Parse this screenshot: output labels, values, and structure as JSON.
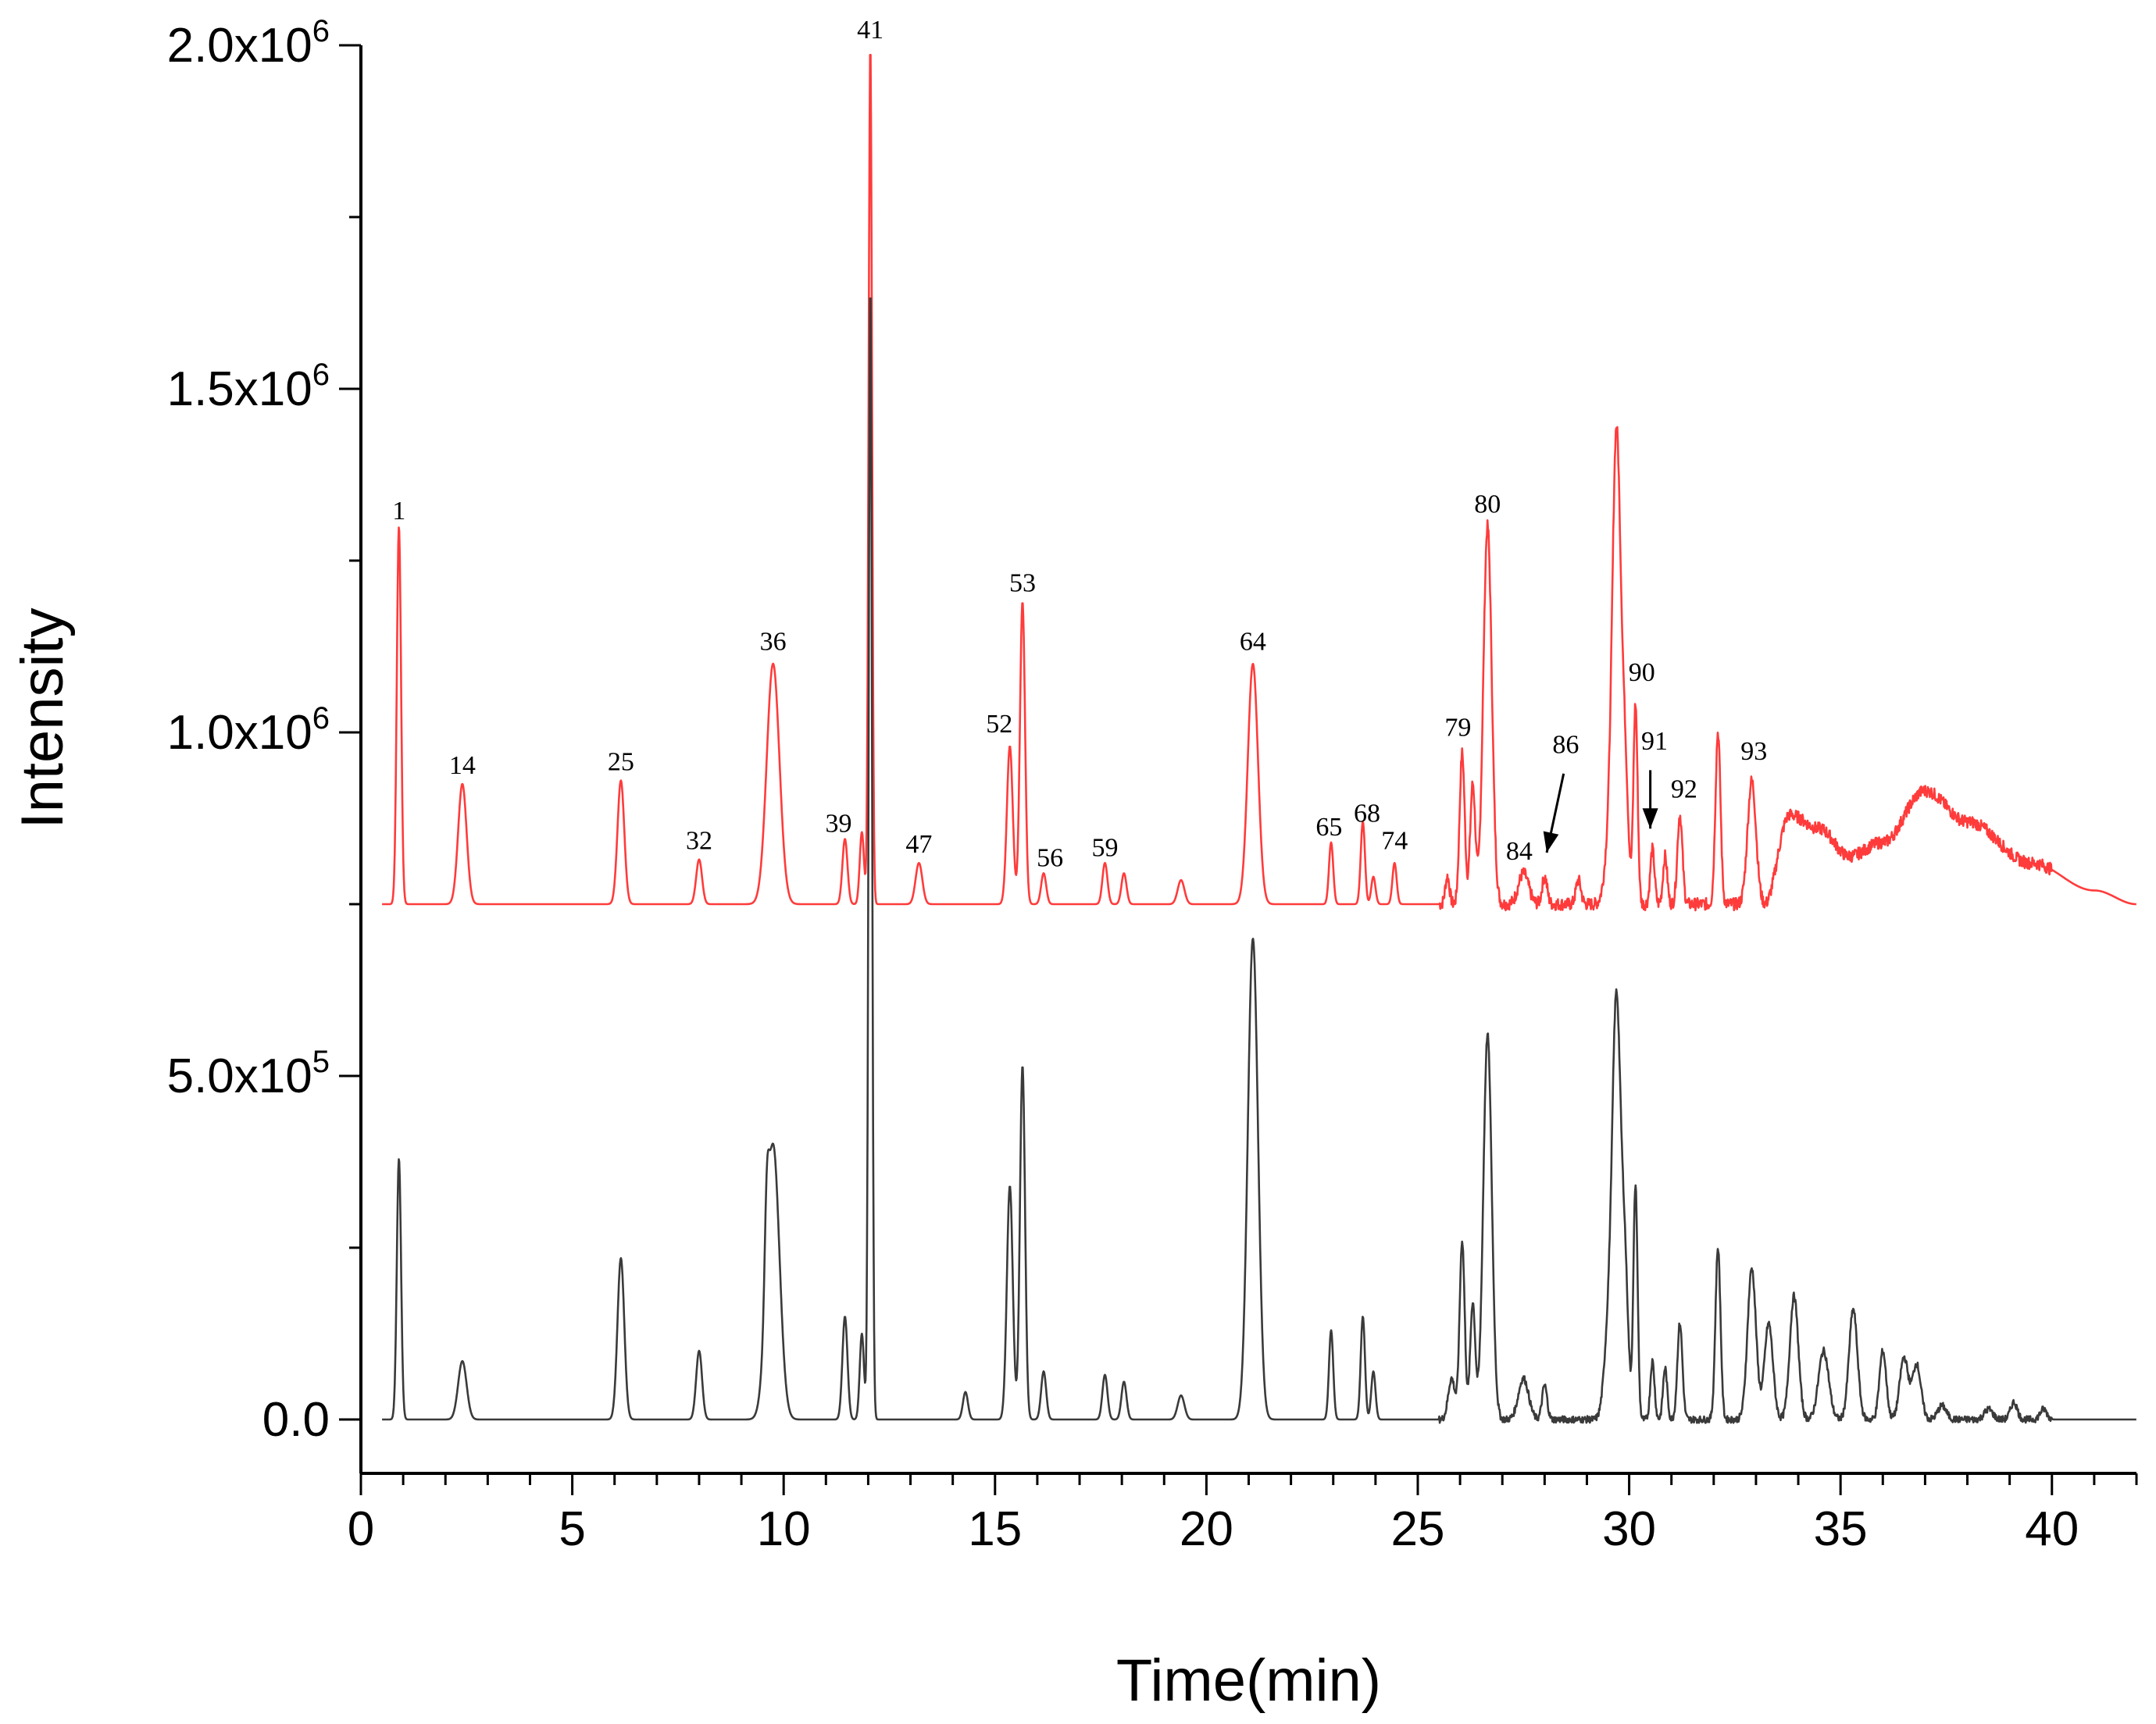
{
  "chart_data": {
    "type": "line",
    "xlabel": "Time(min)",
    "ylabel": "Intensity",
    "xlim": [
      0,
      42
    ],
    "ylim": [
      -150000,
      2000000
    ],
    "x_ticks": [
      0,
      5,
      10,
      15,
      20,
      25,
      30,
      35,
      40
    ],
    "y_ticks": [
      {
        "value": 0,
        "label": "0.0",
        "exp": ""
      },
      {
        "value": 500000,
        "label": "5.0x10",
        "exp": "5"
      },
      {
        "value": 1000000,
        "label": "1.0x10",
        "exp": "6"
      },
      {
        "value": 1500000,
        "label": "1.5x10",
        "exp": "6"
      },
      {
        "value": 2000000,
        "label": "2.0x10",
        "exp": "6"
      }
    ],
    "series": [
      {
        "color": "#ff3b3b",
        "baseline": 750000,
        "hump": [
          [
            33.2,
            0
          ],
          [
            33.8,
            130000
          ],
          [
            34.5,
            110000
          ],
          [
            35.2,
            70000
          ],
          [
            36.0,
            90000
          ],
          [
            37.0,
            165000
          ],
          [
            38.0,
            120000
          ],
          [
            39.5,
            60000
          ],
          [
            41.0,
            20000
          ],
          [
            42.0,
            0
          ]
        ],
        "peaks": [
          [
            0.9,
            550000,
            0.05
          ],
          [
            2.4,
            175000,
            0.1
          ],
          [
            6.15,
            180000,
            0.08
          ],
          [
            8.0,
            65000,
            0.07
          ],
          [
            9.75,
            350000,
            0.15
          ],
          [
            11.45,
            95000,
            0.06
          ],
          [
            11.85,
            105000,
            0.05
          ],
          [
            12.05,
            1250000,
            0.04
          ],
          [
            13.2,
            60000,
            0.08
          ],
          [
            15.35,
            230000,
            0.07
          ],
          [
            15.65,
            440000,
            0.06
          ],
          [
            16.15,
            45000,
            0.06
          ],
          [
            17.6,
            60000,
            0.06
          ],
          [
            18.05,
            45000,
            0.06
          ],
          [
            19.4,
            35000,
            0.08
          ],
          [
            21.1,
            350000,
            0.12
          ],
          [
            22.95,
            90000,
            0.05
          ],
          [
            23.7,
            120000,
            0.05
          ],
          [
            23.95,
            40000,
            0.05
          ],
          [
            24.45,
            60000,
            0.05
          ],
          [
            25.7,
            40000,
            0.05
          ],
          [
            26.05,
            220000,
            0.06
          ],
          [
            26.3,
            175000,
            0.06
          ],
          [
            26.65,
            550000,
            0.1
          ],
          [
            27.5,
            45000,
            0.12
          ],
          [
            28.0,
            40000,
            0.06
          ],
          [
            28.8,
            35000,
            0.06
          ],
          [
            29.5,
            60000,
            0.1
          ],
          [
            29.7,
            680000,
            0.1
          ],
          [
            29.9,
            180000,
            0.08
          ],
          [
            30.15,
            290000,
            0.05
          ],
          [
            30.55,
            80000,
            0.05
          ],
          [
            30.85,
            70000,
            0.05
          ],
          [
            31.2,
            130000,
            0.06
          ],
          [
            32.1,
            250000,
            0.06
          ],
          [
            32.9,
            180000,
            0.1
          ]
        ]
      },
      {
        "color": "#3a3a3a",
        "baseline": 0,
        "hump": [],
        "peaks": [
          [
            0.9,
            380000,
            0.05
          ],
          [
            2.4,
            85000,
            0.1
          ],
          [
            6.15,
            235000,
            0.08
          ],
          [
            8.0,
            100000,
            0.07
          ],
          [
            9.6,
            120000,
            0.05
          ],
          [
            9.75,
            400000,
            0.15
          ],
          [
            11.45,
            150000,
            0.06
          ],
          [
            11.85,
            125000,
            0.05
          ],
          [
            12.05,
            1650000,
            0.04
          ],
          [
            14.3,
            40000,
            0.06
          ],
          [
            15.35,
            340000,
            0.07
          ],
          [
            15.65,
            515000,
            0.06
          ],
          [
            16.15,
            70000,
            0.06
          ],
          [
            17.6,
            65000,
            0.06
          ],
          [
            18.05,
            55000,
            0.06
          ],
          [
            19.4,
            35000,
            0.08
          ],
          [
            21.1,
            700000,
            0.12
          ],
          [
            22.95,
            130000,
            0.05
          ],
          [
            23.7,
            150000,
            0.05
          ],
          [
            23.95,
            70000,
            0.05
          ],
          [
            25.8,
            60000,
            0.08
          ],
          [
            26.05,
            260000,
            0.06
          ],
          [
            26.3,
            170000,
            0.06
          ],
          [
            26.65,
            560000,
            0.1
          ],
          [
            27.5,
            60000,
            0.12
          ],
          [
            28.0,
            50000,
            0.06
          ],
          [
            29.5,
            110000,
            0.1
          ],
          [
            29.7,
            600000,
            0.1
          ],
          [
            29.9,
            200000,
            0.08
          ],
          [
            30.15,
            340000,
            0.05
          ],
          [
            30.55,
            85000,
            0.05
          ],
          [
            30.85,
            75000,
            0.05
          ],
          [
            31.2,
            140000,
            0.06
          ],
          [
            32.1,
            250000,
            0.06
          ],
          [
            32.9,
            220000,
            0.1
          ],
          [
            33.3,
            140000,
            0.1
          ],
          [
            33.9,
            180000,
            0.1
          ],
          [
            34.6,
            100000,
            0.12
          ],
          [
            35.3,
            160000,
            0.1
          ],
          [
            36.0,
            100000,
            0.08
          ],
          [
            36.5,
            90000,
            0.1
          ],
          [
            36.8,
            80000,
            0.1
          ],
          [
            37.4,
            20000,
            0.1
          ],
          [
            38.5,
            15000,
            0.1
          ],
          [
            39.1,
            25000,
            0.08
          ],
          [
            39.8,
            15000,
            0.08
          ]
        ]
      }
    ],
    "peak_labels": [
      {
        "text": "1",
        "x": 0.9,
        "y": 1310000
      },
      {
        "text": "14",
        "x": 2.4,
        "y": 940000
      },
      {
        "text": "25",
        "x": 6.15,
        "y": 945000
      },
      {
        "text": "32",
        "x": 8.0,
        "y": 830000
      },
      {
        "text": "36",
        "x": 9.75,
        "y": 1120000
      },
      {
        "text": "39",
        "x": 11.3,
        "y": 855000
      },
      {
        "text": "41",
        "x": 12.05,
        "y": 2010000
      },
      {
        "text": "47",
        "x": 13.2,
        "y": 825000
      },
      {
        "text": "52",
        "x": 15.1,
        "y": 1000000
      },
      {
        "text": "53",
        "x": 15.65,
        "y": 1205000
      },
      {
        "text": "56",
        "x": 16.3,
        "y": 805000
      },
      {
        "text": "59",
        "x": 17.6,
        "y": 820000
      },
      {
        "text": "64",
        "x": 21.1,
        "y": 1120000
      },
      {
        "text": "65",
        "x": 22.9,
        "y": 850000
      },
      {
        "text": "68",
        "x": 23.8,
        "y": 870000
      },
      {
        "text": "74",
        "x": 24.45,
        "y": 830000
      },
      {
        "text": "79",
        "x": 25.95,
        "y": 995000
      },
      {
        "text": "80",
        "x": 26.65,
        "y": 1320000
      },
      {
        "text": "84",
        "x": 27.4,
        "y": 815000
      },
      {
        "text": "86",
        "x": 28.5,
        "y": 970000
      },
      {
        "text": "90",
        "x": 30.3,
        "y": 1075000
      },
      {
        "text": "91",
        "x": 30.6,
        "y": 975000
      },
      {
        "text": "92",
        "x": 31.3,
        "y": 905000
      },
      {
        "text": "93",
        "x": 32.95,
        "y": 960000
      }
    ],
    "arrows": [
      {
        "from": [
          28.45,
          940000
        ],
        "to": [
          28.05,
          825000
        ]
      },
      {
        "from": [
          30.5,
          945000
        ],
        "to": [
          30.5,
          860000
        ]
      }
    ]
  }
}
